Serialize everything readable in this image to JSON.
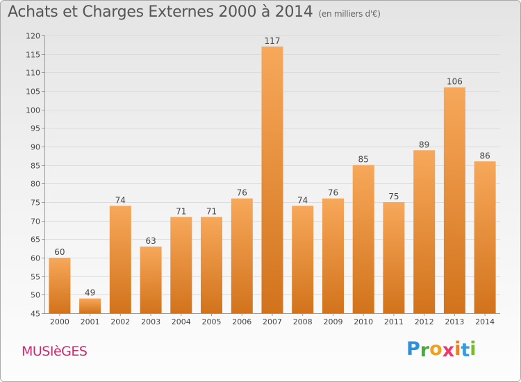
{
  "title": "Achats et Charges Externes 2000 à 2014",
  "subtitle": "(en milliers d'€)",
  "commune": "MUSIèGES",
  "brand": {
    "letters": [
      "P",
      "r",
      "o",
      "x",
      "i",
      "t",
      "i"
    ],
    "colors": [
      "#2f8fd8",
      "#45ad3c",
      "#f0a020",
      "#e83a6f",
      "#f07d1e",
      "#3a9ae0",
      "#7ab82e"
    ]
  },
  "colors": {
    "bar_top": "#f7a85a",
    "bar_bottom": "#d2731c",
    "grid": "#dcdcdc",
    "axis": "#999999",
    "title": "#555555",
    "commune": "#cc2a70"
  },
  "chart_data": {
    "type": "bar",
    "title": "Achats et Charges Externes 2000 à 2014",
    "subtitle": "(en milliers d'€)",
    "categories": [
      "2000",
      "2001",
      "2002",
      "2003",
      "2004",
      "2005",
      "2006",
      "2007",
      "2008",
      "2009",
      "2010",
      "2011",
      "2012",
      "2013",
      "2014"
    ],
    "values": [
      60,
      49,
      74,
      63,
      71,
      71,
      76,
      117,
      74,
      76,
      85,
      75,
      89,
      106,
      86
    ],
    "xlabel": "",
    "ylabel": "",
    "ylim": [
      45,
      120
    ],
    "yticks": [
      45,
      50,
      55,
      60,
      65,
      70,
      75,
      80,
      85,
      90,
      95,
      100,
      105,
      110,
      115,
      120
    ],
    "grid": true,
    "legend": "none"
  }
}
